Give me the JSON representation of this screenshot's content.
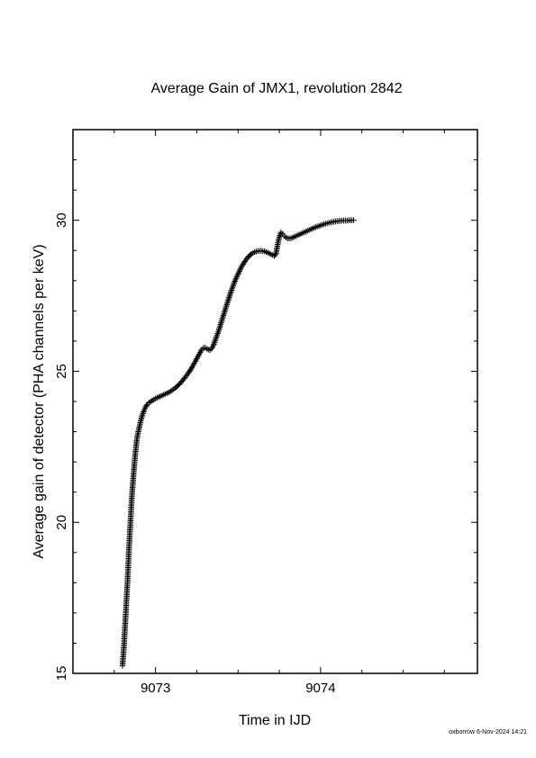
{
  "chart_data": {
    "type": "scatter",
    "marker": "+",
    "title": "Average Gain of JMX1, revolution 2842",
    "xlabel": "Time in IJD",
    "ylabel": "Average gain of detector (PHA channels per keV)",
    "xlim": [
      9072.5,
      9074.95
    ],
    "ylim": [
      15,
      33
    ],
    "xticks": [
      9073,
      9074
    ],
    "yticks": [
      15,
      20,
      25,
      30
    ],
    "grid": false,
    "color": "#000000",
    "series": [
      {
        "points": [
          [
            9072.8,
            15.25
          ],
          [
            9072.805,
            15.6
          ],
          [
            9072.81,
            16.0
          ],
          [
            9072.815,
            16.5
          ],
          [
            9072.82,
            17.0
          ],
          [
            9072.825,
            17.5
          ],
          [
            9072.83,
            18.0
          ],
          [
            9072.835,
            18.6
          ],
          [
            9072.84,
            19.2
          ],
          [
            9072.845,
            19.7
          ],
          [
            9072.85,
            20.2
          ],
          [
            9072.855,
            20.7
          ],
          [
            9072.86,
            21.1
          ],
          [
            9072.865,
            21.45
          ],
          [
            9072.87,
            21.8
          ],
          [
            9072.875,
            22.1
          ],
          [
            9072.88,
            22.4
          ],
          [
            9072.885,
            22.65
          ],
          [
            9072.89,
            22.85
          ],
          [
            9072.9,
            23.1
          ],
          [
            9072.91,
            23.35
          ],
          [
            9072.92,
            23.55
          ],
          [
            9072.93,
            23.7
          ],
          [
            9072.94,
            23.82
          ],
          [
            9072.95,
            23.9
          ],
          [
            9072.96,
            23.96
          ],
          [
            9072.98,
            24.03
          ],
          [
            9073.0,
            24.1
          ],
          [
            9073.02,
            24.15
          ],
          [
            9073.04,
            24.2
          ],
          [
            9073.06,
            24.25
          ],
          [
            9073.08,
            24.3
          ],
          [
            9073.1,
            24.37
          ],
          [
            9073.12,
            24.45
          ],
          [
            9073.14,
            24.55
          ],
          [
            9073.16,
            24.67
          ],
          [
            9073.18,
            24.8
          ],
          [
            9073.2,
            24.95
          ],
          [
            9073.22,
            25.12
          ],
          [
            9073.24,
            25.32
          ],
          [
            9073.26,
            25.52
          ],
          [
            9073.27,
            25.62
          ],
          [
            9073.28,
            25.72
          ],
          [
            9073.29,
            25.77
          ],
          [
            9073.3,
            25.78
          ],
          [
            9073.31,
            25.75
          ],
          [
            9073.32,
            25.72
          ],
          [
            9073.33,
            25.7
          ],
          [
            9073.34,
            25.75
          ],
          [
            9073.35,
            25.85
          ],
          [
            9073.36,
            26.0
          ],
          [
            9073.38,
            26.3
          ],
          [
            9073.4,
            26.65
          ],
          [
            9073.42,
            27.0
          ],
          [
            9073.44,
            27.35
          ],
          [
            9073.46,
            27.68
          ],
          [
            9073.48,
            27.98
          ],
          [
            9073.5,
            28.22
          ],
          [
            9073.52,
            28.45
          ],
          [
            9073.54,
            28.63
          ],
          [
            9073.56,
            28.78
          ],
          [
            9073.58,
            28.88
          ],
          [
            9073.6,
            28.95
          ],
          [
            9073.62,
            28.98
          ],
          [
            9073.64,
            28.99
          ],
          [
            9073.66,
            28.97
          ],
          [
            9073.68,
            28.93
          ],
          [
            9073.7,
            28.87
          ],
          [
            9073.72,
            28.82
          ],
          [
            9073.73,
            28.9
          ],
          [
            9073.74,
            29.2
          ],
          [
            9073.75,
            29.45
          ],
          [
            9073.76,
            29.6
          ],
          [
            9073.77,
            29.55
          ],
          [
            9073.78,
            29.48
          ],
          [
            9073.79,
            29.43
          ],
          [
            9073.8,
            29.4
          ],
          [
            9073.82,
            29.4
          ],
          [
            9073.84,
            29.45
          ],
          [
            9073.86,
            29.5
          ],
          [
            9073.88,
            29.55
          ],
          [
            9073.9,
            29.6
          ],
          [
            9073.92,
            29.65
          ],
          [
            9073.94,
            29.7
          ],
          [
            9073.96,
            29.75
          ],
          [
            9073.98,
            29.79
          ],
          [
            9074.0,
            29.83
          ],
          [
            9074.02,
            29.87
          ],
          [
            9074.04,
            29.9
          ],
          [
            9074.06,
            29.93
          ],
          [
            9074.08,
            29.95
          ],
          [
            9074.1,
            29.97
          ],
          [
            9074.12,
            29.98
          ],
          [
            9074.14,
            29.99
          ],
          [
            9074.16,
            29.99
          ],
          [
            9074.18,
            30.0
          ],
          [
            9074.2,
            30.0
          ]
        ]
      }
    ]
  },
  "footer": "oxborrow  6-Nov-2024 14:21"
}
